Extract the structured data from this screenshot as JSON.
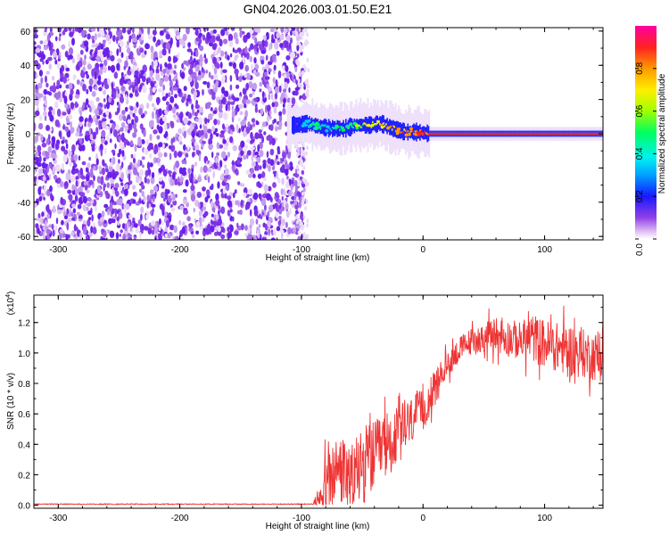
{
  "chart_data": [
    {
      "type": "heatmap",
      "title": "GN04.2026.003.01.50.E21",
      "xlabel": "Height of straight line (km)",
      "ylabel": "Frequency (Hz)",
      "xlim": [
        -320,
        148
      ],
      "ylim": [
        -62,
        62
      ],
      "xticks": [
        -300,
        -200,
        -100,
        0,
        100
      ],
      "yticks": [
        -60,
        -40,
        -20,
        0,
        20,
        40,
        60
      ],
      "noise_region_x": [
        -320,
        -100
      ],
      "signal_track": {
        "x": [
          -105,
          -95,
          -85,
          -75,
          -65,
          -55,
          -45,
          -35,
          -25,
          -15,
          -5,
          5,
          50,
          100,
          148
        ],
        "freq": [
          5,
          6,
          4,
          3,
          3,
          5,
          5,
          6,
          3,
          1,
          1,
          0,
          0,
          0,
          0
        ],
        "amplitude": [
          0.2,
          0.45,
          0.5,
          0.5,
          0.55,
          0.6,
          0.7,
          0.8,
          0.85,
          0.9,
          0.92,
          0.95,
          0.95,
          0.95,
          0.95
        ]
      },
      "colorbar": {
        "label": "Normalized spectral amplitude",
        "ticks": [
          "0.0",
          "0.2",
          "0.4",
          "0.6",
          "0.8"
        ],
        "range": [
          0,
          1
        ]
      }
    },
    {
      "type": "line",
      "xlabel": "Height of straight line (km)",
      "ylabel": "SNR (10 * v/v)",
      "scale_label": "(x10",
      "scale_exp": "4",
      "xlim": [
        -320,
        148
      ],
      "ylim": [
        -0.02,
        1.38
      ],
      "xticks": [
        -300,
        -200,
        -100,
        0,
        100
      ],
      "yticks": [
        "0.0",
        "0.2",
        "0.4",
        "0.6",
        "0.8",
        "1.0",
        "1.2"
      ],
      "series": [
        {
          "name": "SNR",
          "color": "#ee3333",
          "x": [
            -320,
            -200,
            -100,
            -90,
            -85,
            -80,
            -75,
            -70,
            -65,
            -60,
            -55,
            -50,
            -45,
            -40,
            -35,
            -30,
            -25,
            -20,
            -15,
            -10,
            -5,
            0,
            5,
            10,
            15,
            20,
            25,
            30,
            40,
            50,
            60,
            70,
            80,
            90,
            100,
            110,
            120,
            130,
            140,
            148
          ],
          "values": [
            0.0,
            0.0,
            0.0,
            0.01,
            0.06,
            0.14,
            0.18,
            0.24,
            0.22,
            0.18,
            0.22,
            0.26,
            0.3,
            0.32,
            0.36,
            0.4,
            0.42,
            0.46,
            0.5,
            0.55,
            0.6,
            0.62,
            0.7,
            0.78,
            0.86,
            0.92,
            0.98,
            1.02,
            1.08,
            1.1,
            1.12,
            1.1,
            1.08,
            1.1,
            1.06,
            1.04,
            1.02,
            1.0,
            0.98,
            0.97
          ],
          "noise": [
            0.004,
            0.004,
            0.004,
            0.01,
            0.1,
            0.22,
            0.25,
            0.27,
            0.26,
            0.24,
            0.26,
            0.28,
            0.28,
            0.26,
            0.25,
            0.24,
            0.22,
            0.22,
            0.2,
            0.18,
            0.16,
            0.15,
            0.14,
            0.12,
            0.1,
            0.1,
            0.1,
            0.1,
            0.1,
            0.1,
            0.14,
            0.14,
            0.14,
            0.18,
            0.18,
            0.18,
            0.2,
            0.18,
            0.18,
            0.18
          ]
        }
      ]
    }
  ]
}
